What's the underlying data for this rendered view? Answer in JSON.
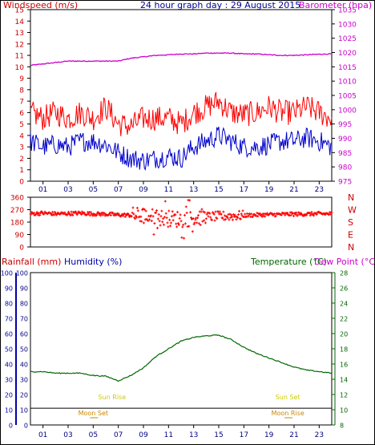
{
  "title": "24 hour graph day : 29 August 2015",
  "colors": {
    "wind": "#ff0000",
    "gust": "#ff0000",
    "avg": "#0000cc",
    "baro": "#cc00cc",
    "dir": "#ff0000",
    "temp": "#006600",
    "dew": "#cc00cc",
    "rain": "#cc0000",
    "humidity": "#0000aa",
    "sun": "#cccc00",
    "moon": "#cc8800",
    "grid": "#000000"
  },
  "hour_labels": [
    "01",
    "03",
    "05",
    "07",
    "09",
    "11",
    "13",
    "15",
    "17",
    "19",
    "21",
    "23"
  ],
  "chart_data": [
    {
      "type": "line",
      "panel": "wind-baro",
      "left_label": "Windspeed (m/s)",
      "right_label": "Barometer (hpa)",
      "left_ticks": [
        "15",
        "14",
        "13",
        "12",
        "11",
        "10",
        "9",
        "8",
        "7",
        "6",
        "5",
        "4",
        "3",
        "2",
        "1",
        "0"
      ],
      "right_ticks": [
        "1035",
        "1030",
        "1025",
        "1020",
        "1015",
        "1010",
        "1005",
        "1000",
        "995",
        "990",
        "985",
        "980",
        "975"
      ],
      "ylim": [
        0,
        15
      ],
      "ylim_right": [
        975,
        1035
      ],
      "x": [
        0,
        1,
        2,
        3,
        4,
        5,
        6,
        7,
        8,
        9,
        10,
        11,
        12,
        13,
        14,
        15,
        16,
        17,
        18,
        19,
        20,
        21,
        22,
        23,
        24
      ],
      "series": [
        {
          "name": "gust",
          "values": [
            6.0,
            5.5,
            6.0,
            5.5,
            6.0,
            5.5,
            6.5,
            5.0,
            4.8,
            5.5,
            5.5,
            5.5,
            5.0,
            6.0,
            6.5,
            7.0,
            6.0,
            5.8,
            6.0,
            6.5,
            6.0,
            6.0,
            6.5,
            6.0,
            5.5
          ]
        },
        {
          "name": "average",
          "values": [
            3.5,
            3.0,
            3.2,
            3.0,
            3.5,
            3.5,
            3.2,
            2.5,
            2.0,
            1.8,
            2.0,
            2.2,
            2.0,
            3.0,
            3.5,
            4.0,
            3.5,
            3.0,
            3.0,
            3.2,
            3.5,
            3.5,
            3.8,
            3.5,
            3.0
          ]
        },
        {
          "name": "barometer",
          "values": [
            1015.5,
            1016.0,
            1016.5,
            1017.0,
            1017.0,
            1017.0,
            1017.0,
            1017.0,
            1018.0,
            1018.5,
            1019.0,
            1019.2,
            1019.5,
            1019.5,
            1019.8,
            1019.8,
            1019.8,
            1019.5,
            1019.5,
            1019.2,
            1019.0,
            1019.0,
            1019.2,
            1019.4,
            1019.5
          ]
        }
      ]
    },
    {
      "type": "scatter",
      "panel": "wind-direction",
      "left_ticks": [
        "360",
        "270",
        "180",
        "90",
        "0"
      ],
      "right_ticks": [
        "N",
        "W",
        "S",
        "E",
        "N"
      ],
      "ylim": [
        0,
        360
      ],
      "x": [
        0,
        1,
        2,
        3,
        4,
        5,
        6,
        7,
        8,
        9,
        10,
        11,
        12,
        13,
        14,
        15,
        16,
        17,
        18,
        19,
        20,
        21,
        22,
        23,
        24
      ],
      "values": [
        240,
        245,
        240,
        242,
        245,
        240,
        238,
        232,
        230,
        225,
        215,
        205,
        200,
        210,
        218,
        222,
        225,
        228,
        232,
        234,
        236,
        238,
        238,
        240,
        240
      ]
    },
    {
      "type": "line",
      "panel": "temp-rain",
      "left_label_rain": "Rainfall (mm)",
      "left_label_humidity": "Humidity (%)",
      "right_label_temp": "Temperature (°C)",
      "right_label_dew": "Dew Point (°C)",
      "rain_ticks": [
        "100",
        "90",
        "80",
        "70",
        "60",
        "50",
        "40",
        "30",
        "20",
        "10",
        "0"
      ],
      "humidity_ticks": [
        "100",
        "90",
        "80",
        "70",
        "60",
        "50",
        "40",
        "30",
        "20",
        "10",
        "0"
      ],
      "temp_ticks": [
        "28",
        "26",
        "24",
        "22",
        "20",
        "18",
        "16",
        "14",
        "12",
        "10",
        "8"
      ],
      "ylim": [
        0,
        100
      ],
      "ylim_right": [
        8,
        28
      ],
      "x": [
        0,
        1,
        2,
        3,
        4,
        5,
        6,
        7,
        8,
        9,
        10,
        11,
        12,
        13,
        14,
        15,
        16,
        17,
        18,
        19,
        20,
        21,
        22,
        23,
        24
      ],
      "series": [
        {
          "name": "temperature",
          "values": [
            15.0,
            15.0,
            14.8,
            14.8,
            14.8,
            14.5,
            14.4,
            13.8,
            14.5,
            15.5,
            17.0,
            18.0,
            19.0,
            19.5,
            19.7,
            19.8,
            19.2,
            18.2,
            17.4,
            16.8,
            16.2,
            15.6,
            15.2,
            15.0,
            14.8
          ]
        },
        {
          "name": "dewpoint",
          "values": [
            10.2,
            10.2,
            10.2,
            10.2,
            10.2,
            10.2,
            10.2,
            10.2,
            10.2,
            10.2,
            10.2,
            10.2,
            10.2,
            10.2,
            10.2,
            10.2,
            10.2,
            10.2,
            10.2,
            10.2,
            10.2,
            10.2,
            10.2,
            10.2,
            10.2
          ]
        }
      ],
      "annotations": {
        "sun_rise": {
          "label": "Sun Rise",
          "hour": 6.5
        },
        "sun_set": {
          "label": "Sun Set",
          "hour": 20.5
        },
        "moon_set": {
          "label": "Moon Set",
          "hour": 5.0
        },
        "moon_rise": {
          "label": "Moon Rise",
          "hour": 20.5
        }
      }
    }
  ]
}
